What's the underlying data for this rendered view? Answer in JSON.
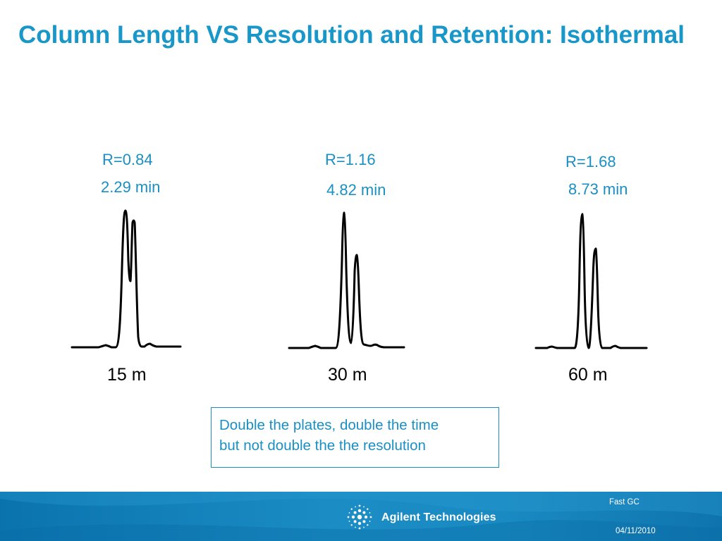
{
  "slide": {
    "title": "Column Length VS Resolution and Retention: Isothermal"
  },
  "chromatograms": [
    {
      "resolution": "R=0.84",
      "time": "2.29 min",
      "length": "15 m"
    },
    {
      "resolution": "R=1.16",
      "time": "4.82 min",
      "length": "30 m"
    },
    {
      "resolution": "R=1.68",
      "time": "8.73 min",
      "length": "60 m"
    }
  ],
  "callout": {
    "line1": "Double the plates, double the time",
    "line2": "but not double the the resolution"
  },
  "footer": {
    "brand": "Agilent Technologies",
    "topic": "Fast GC",
    "date": "04/11/2010"
  },
  "colors": {
    "title": "#1a97c9",
    "label": "#1a8fc4",
    "trace": "#000000",
    "footer_band": "#1a8ac2"
  },
  "icons": {
    "logo": "agilent-spark-icon"
  }
}
